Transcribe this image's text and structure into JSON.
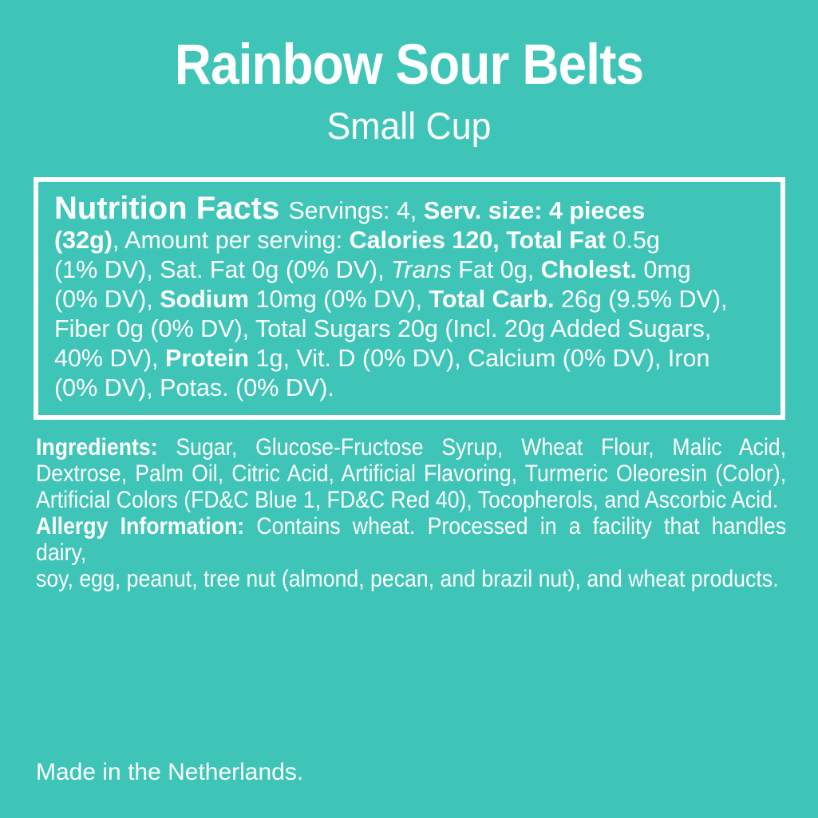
{
  "colors": {
    "background": "#3FC5B7",
    "text": "#FFFFFF",
    "box_border": "#FFFFFF"
  },
  "header": {
    "title": "Rainbow Sour Belts",
    "subtitle": "Small Cup"
  },
  "nutrition_facts": {
    "heading": "Nutrition Facts",
    "servings": "4",
    "serving_size": "4 pieces (32g)",
    "calories": "120",
    "lines": [
      {
        "justify": false,
        "segments": [
          {
            "t": "Nutrition Facts ",
            "s": "h"
          },
          {
            "t": "Servings: 4, ",
            "s": "r"
          },
          {
            "t": "Serv. size: 4 pieces",
            "s": "b"
          }
        ]
      },
      {
        "justify": false,
        "segments": [
          {
            "t": "(32g)",
            "s": "b"
          },
          {
            "t": ", Amount per serving: ",
            "s": "r"
          },
          {
            "t": "Calories 120, Total Fat",
            "s": "b"
          },
          {
            "t": " 0.5g",
            "s": "r"
          }
        ]
      },
      {
        "justify": false,
        "segments": [
          {
            "t": "(1% DV), Sat. Fat 0g (0% DV), ",
            "s": "r"
          },
          {
            "t": "Trans",
            "s": "i"
          },
          {
            "t": " Fat 0g, ",
            "s": "r"
          },
          {
            "t": "Cholest.",
            "s": "b"
          },
          {
            "t": " 0mg",
            "s": "r"
          }
        ]
      },
      {
        "justify": false,
        "segments": [
          {
            "t": "(0% DV), ",
            "s": "r"
          },
          {
            "t": "Sodium",
            "s": "b"
          },
          {
            "t": " 10mg (0% DV), ",
            "s": "r"
          },
          {
            "t": "Total Carb.",
            "s": "b"
          },
          {
            "t": " 26g (9.5% DV),",
            "s": "r"
          }
        ]
      },
      {
        "justify": false,
        "segments": [
          {
            "t": "Fiber 0g (0% DV), Total Sugars 20g (Incl. 20g Added Sugars,",
            "s": "r"
          }
        ]
      },
      {
        "justify": false,
        "segments": [
          {
            "t": "40% DV), ",
            "s": "r"
          },
          {
            "t": "Protein",
            "s": "b"
          },
          {
            "t": " 1g, Vit. D (0% DV), Calcium (0% DV), Iron",
            "s": "r"
          }
        ]
      },
      {
        "justify": false,
        "segments": [
          {
            "t": "(0% DV), Potas. (0% DV).",
            "s": "r"
          }
        ]
      }
    ]
  },
  "ingredients_section": {
    "lines": [
      {
        "justify": true,
        "segments": [
          {
            "t": "Ingredients: ",
            "s": "b"
          },
          {
            "t": "Sugar, Glucose-Fructose Syrup, Wheat Flour, Malic Acid,",
            "s": "r"
          }
        ]
      },
      {
        "justify": true,
        "segments": [
          {
            "t": "Dextrose, Palm Oil, Citric Acid, Artificial Flavoring, Turmeric Oleoresin (Color),",
            "s": "r"
          }
        ]
      },
      {
        "justify": false,
        "segments": [
          {
            "t": "Artificial Colors (FD&C Blue 1, FD&C Red 40), Tocopherols, and Ascorbic Acid.",
            "s": "r"
          }
        ]
      },
      {
        "justify": true,
        "segments": [
          {
            "t": "Allergy Information: ",
            "s": "b"
          },
          {
            "t": "Contains wheat. Processed in a facility that handles dairy,",
            "s": "r"
          }
        ]
      },
      {
        "justify": false,
        "segments": [
          {
            "t": "soy, egg, peanut, tree nut (almond, pecan, and brazil nut), and wheat products.",
            "s": "r"
          }
        ]
      }
    ]
  },
  "footer": {
    "made_in": "Made in the Netherlands."
  }
}
